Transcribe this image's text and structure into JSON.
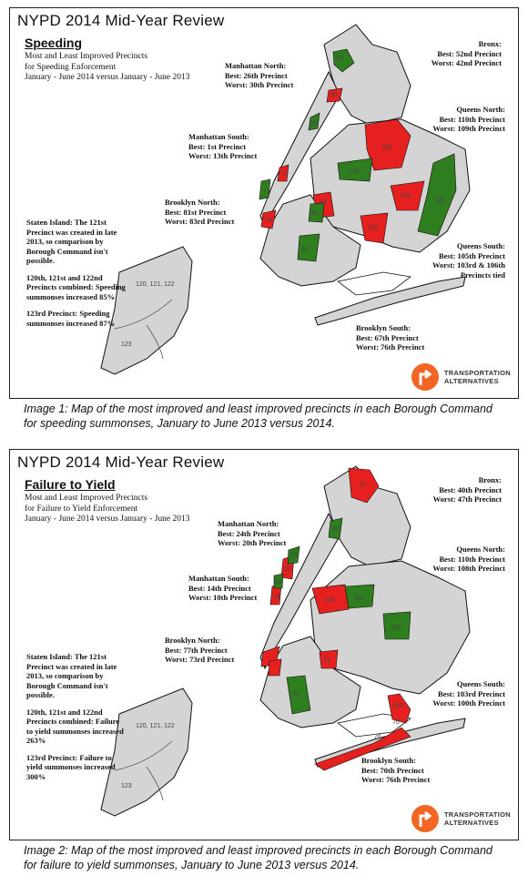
{
  "colors": {
    "best": "#2e7d1f",
    "worst": "#e5201f",
    "land": "#d4d4d4",
    "outline": "#111111",
    "brand": "#f26522"
  },
  "maps": [
    {
      "title": "NYPD 2014 Mid-Year Review",
      "subtitle": "Speeding",
      "description": [
        "Most and Least Improved Precincts",
        "for Speeding Enforcement",
        "January - June 2014 versus January - June 2013"
      ],
      "labels": {
        "bronx": [
          "Bronx:",
          "Best: 52nd Precinct",
          "Worst: 42nd Precinct"
        ],
        "manhattan_north": [
          "Manhattan North:",
          "Best: 26th Precinct",
          "Worst: 30th Precinct"
        ],
        "manhattan_south": [
          "Manhattan South:",
          "Best: 1st Precinct",
          "Worst: 13th Precinct"
        ],
        "queens_north": [
          "Queens North:",
          "Best: 110th Precinct",
          "Worst: 109th Precinct"
        ],
        "brooklyn_north": [
          "Brooklyn North:",
          "Best: 81st Precinct",
          "Worst: 83rd Precinct"
        ],
        "queens_south": [
          "Queens South:",
          "Best: 105th Precinct",
          "Worst: 103rd & 106th",
          "Precincts tied"
        ],
        "brooklyn_south": [
          "Brooklyn South:",
          "Best: 67th Precinct",
          "Worst: 76th Precinct"
        ]
      },
      "staten_island": [
        "Staten Island: The 121st Precinct was created in late 2013, so comparison by Borough Command isn't possible.",
        "120th, 121st and 122nd Precincts combined: Speeding summonses increased 85%",
        "123rd Precinct: Speeding summonses increased 87%"
      ],
      "precinct_tags": {
        "si_north": "120, 121, 122",
        "si_south": "123",
        "bronx_best": "52",
        "manhattan_north_worst": "30",
        "manhattan_north_best": "26",
        "queens_north_worst": "109",
        "queens_north_best": "110",
        "queens_south_best": "105",
        "queens_south_worst_a": "103",
        "queens_south_worst_b": "106",
        "brooklyn_north_best": "81",
        "brooklyn_north_worst": "83",
        "brooklyn_south_best": "67",
        "brooklyn_south_worst": "76",
        "manhattan_south_best": "1",
        "manhattan_south_worst": "13"
      },
      "logo": [
        "TRANSPORTATION",
        "ALTERNATIVES"
      ],
      "caption": "Image 1: Map of the most improved and least improved precincts in each Borough Command for speeding summonses, January to June 2013 versus 2014."
    },
    {
      "title": "NYPD 2014 Mid-Year Review",
      "subtitle": "Failure to Yield",
      "description": [
        "Most and Least Improved Precincts",
        "for Failure to Yield Enforcement",
        "January - June 2014 versus January - June 2013"
      ],
      "labels": {
        "bronx": [
          "Bronx:",
          "Best: 40th Precinct",
          "Worst: 47th Precinct"
        ],
        "manhattan_north": [
          "Manhattan North:",
          "Best: 24th Precinct",
          "Worst: 20th Precinct"
        ],
        "manhattan_south": [
          "Manhattan South:",
          "Best: 14th Precinct",
          "Worst: 10th Precinct"
        ],
        "queens_north": [
          "Queens North:",
          "Best: 110th Precinct",
          "Worst: 108th Precinct"
        ],
        "brooklyn_north": [
          "Brooklyn North:",
          "Best: 77th Precinct",
          "Worst: 73rd Precinct"
        ],
        "queens_south": [
          "Queens South:",
          "Best: 103rd Precinct",
          "Worst: 100th Precinct"
        ],
        "brooklyn_south": [
          "Brooklyn South:",
          "Best: 70th Precinct",
          "Worst: 76th Precinct"
        ]
      },
      "staten_island": [
        "Staten Island: The 121st Precinct was created in late 2013, so comparison by Borough Command isn't possible.",
        "120th, 121st and 122nd Precincts combined: Failure to yield summonses increased 263%",
        "123rd Precinct: Failure to yield summonses increased 300%"
      ],
      "precinct_tags": {
        "si_north": "120, 121, 122",
        "si_south": "123",
        "bronx_worst": "47",
        "bronx_best": "40",
        "manhattan_north_worst": "20",
        "manhattan_north_best": "24",
        "queens_north_worst": "108",
        "queens_north_best": "110",
        "queens_south_best": "103",
        "queens_south_worst": "100",
        "brooklyn_north_best": "77",
        "brooklyn_north_worst": "73",
        "brooklyn_south_best": "70",
        "brooklyn_south_worst": "76",
        "manhattan_south_best": "14",
        "manhattan_south_worst": "10"
      },
      "logo": [
        "TRANSPORTATION",
        "ALTERNATIVES"
      ],
      "caption": "Image 2: Map of the most improved and least improved precincts in each Borough Command for failure to yield summonses, January to June 2013 versus 2014."
    }
  ]
}
